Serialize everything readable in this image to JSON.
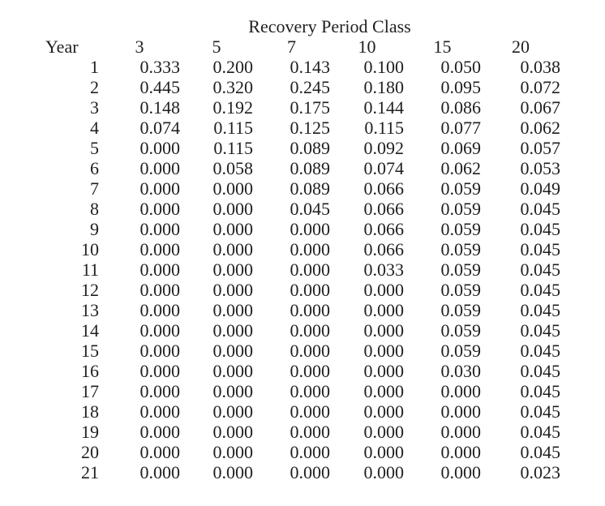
{
  "page": {
    "title": "Recovery Period Class"
  },
  "table": {
    "year_header": "Year",
    "class_headers": [
      "3",
      "5",
      "7",
      "10",
      "15",
      "20"
    ],
    "rows": [
      {
        "year": "1",
        "values": [
          "0.333",
          "0.200",
          "0.143",
          "0.100",
          "0.050",
          "0.038"
        ]
      },
      {
        "year": "2",
        "values": [
          "0.445",
          "0.320",
          "0.245",
          "0.180",
          "0.095",
          "0.072"
        ]
      },
      {
        "year": "3",
        "values": [
          "0.148",
          "0.192",
          "0.175",
          "0.144",
          "0.086",
          "0.067"
        ]
      },
      {
        "year": "4",
        "values": [
          "0.074",
          "0.115",
          "0.125",
          "0.115",
          "0.077",
          "0.062"
        ]
      },
      {
        "year": "5",
        "values": [
          "0.000",
          "0.115",
          "0.089",
          "0.092",
          "0.069",
          "0.057"
        ]
      },
      {
        "year": "6",
        "values": [
          "0.000",
          "0.058",
          "0.089",
          "0.074",
          "0.062",
          "0.053"
        ]
      },
      {
        "year": "7",
        "values": [
          "0.000",
          "0.000",
          "0.089",
          "0.066",
          "0.059",
          "0.049"
        ]
      },
      {
        "year": "8",
        "values": [
          "0.000",
          "0.000",
          "0.045",
          "0.066",
          "0.059",
          "0.045"
        ]
      },
      {
        "year": "9",
        "values": [
          "0.000",
          "0.000",
          "0.000",
          "0.066",
          "0.059",
          "0.045"
        ]
      },
      {
        "year": "10",
        "values": [
          "0.000",
          "0.000",
          "0.000",
          "0.066",
          "0.059",
          "0.045"
        ]
      },
      {
        "year": "11",
        "values": [
          "0.000",
          "0.000",
          "0.000",
          "0.033",
          "0.059",
          "0.045"
        ]
      },
      {
        "year": "12",
        "values": [
          "0.000",
          "0.000",
          "0.000",
          "0.000",
          "0.059",
          "0.045"
        ]
      },
      {
        "year": "13",
        "values": [
          "0.000",
          "0.000",
          "0.000",
          "0.000",
          "0.059",
          "0.045"
        ]
      },
      {
        "year": "14",
        "values": [
          "0.000",
          "0.000",
          "0.000",
          "0.000",
          "0.059",
          "0.045"
        ]
      },
      {
        "year": "15",
        "values": [
          "0.000",
          "0.000",
          "0.000",
          "0.000",
          "0.059",
          "0.045"
        ]
      },
      {
        "year": "16",
        "values": [
          "0.000",
          "0.000",
          "0.000",
          "0.000",
          "0.030",
          "0.045"
        ]
      },
      {
        "year": "17",
        "values": [
          "0.000",
          "0.000",
          "0.000",
          "0.000",
          "0.000",
          "0.045"
        ]
      },
      {
        "year": "18",
        "values": [
          "0.000",
          "0.000",
          "0.000",
          "0.000",
          "0.000",
          "0.045"
        ]
      },
      {
        "year": "19",
        "values": [
          "0.000",
          "0.000",
          "0.000",
          "0.000",
          "0.000",
          "0.045"
        ]
      },
      {
        "year": "20",
        "values": [
          "0.000",
          "0.000",
          "0.000",
          "0.000",
          "0.000",
          "0.045"
        ]
      },
      {
        "year": "21",
        "values": [
          "0.000",
          "0.000",
          "0.000",
          "0.000",
          "0.000",
          "0.023"
        ]
      }
    ]
  },
  "chart_data": {
    "type": "table",
    "title": "Recovery Period Class",
    "row_label": "Year",
    "columns": [
      "3",
      "5",
      "7",
      "10",
      "15",
      "20"
    ],
    "years": [
      1,
      2,
      3,
      4,
      5,
      6,
      7,
      8,
      9,
      10,
      11,
      12,
      13,
      14,
      15,
      16,
      17,
      18,
      19,
      20,
      21
    ],
    "series": [
      {
        "name": "3",
        "values": [
          0.333,
          0.445,
          0.148,
          0.074,
          0.0,
          0.0,
          0.0,
          0.0,
          0.0,
          0.0,
          0.0,
          0.0,
          0.0,
          0.0,
          0.0,
          0.0,
          0.0,
          0.0,
          0.0,
          0.0,
          0.0
        ]
      },
      {
        "name": "5",
        "values": [
          0.2,
          0.32,
          0.192,
          0.115,
          0.115,
          0.058,
          0.0,
          0.0,
          0.0,
          0.0,
          0.0,
          0.0,
          0.0,
          0.0,
          0.0,
          0.0,
          0.0,
          0.0,
          0.0,
          0.0,
          0.0
        ]
      },
      {
        "name": "7",
        "values": [
          0.143,
          0.245,
          0.175,
          0.125,
          0.089,
          0.089,
          0.089,
          0.045,
          0.0,
          0.0,
          0.0,
          0.0,
          0.0,
          0.0,
          0.0,
          0.0,
          0.0,
          0.0,
          0.0,
          0.0,
          0.0
        ]
      },
      {
        "name": "10",
        "values": [
          0.1,
          0.18,
          0.144,
          0.115,
          0.092,
          0.074,
          0.066,
          0.066,
          0.066,
          0.066,
          0.033,
          0.0,
          0.0,
          0.0,
          0.0,
          0.0,
          0.0,
          0.0,
          0.0,
          0.0,
          0.0
        ]
      },
      {
        "name": "15",
        "values": [
          0.05,
          0.095,
          0.086,
          0.077,
          0.069,
          0.062,
          0.059,
          0.059,
          0.059,
          0.059,
          0.059,
          0.059,
          0.059,
          0.059,
          0.059,
          0.03,
          0.0,
          0.0,
          0.0,
          0.0,
          0.0
        ]
      },
      {
        "name": "20",
        "values": [
          0.038,
          0.072,
          0.067,
          0.062,
          0.057,
          0.053,
          0.049,
          0.045,
          0.045,
          0.045,
          0.045,
          0.045,
          0.045,
          0.045,
          0.045,
          0.045,
          0.045,
          0.045,
          0.045,
          0.045,
          0.023
        ]
      }
    ]
  }
}
